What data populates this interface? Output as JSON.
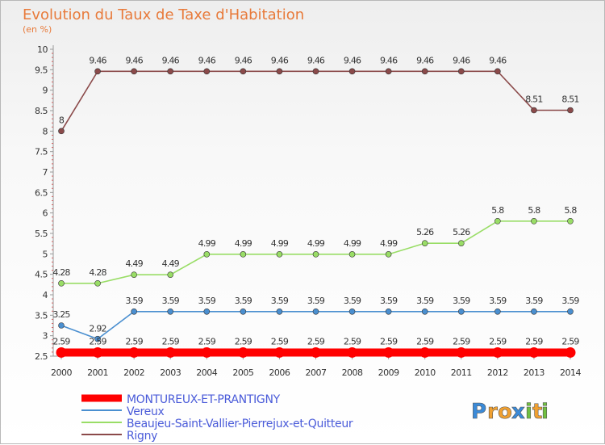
{
  "chart_data": {
    "type": "line",
    "title": "Evolution du Taux de Taxe d'Habitation",
    "subtitle": "(en %)",
    "x": [
      "2000",
      "2001",
      "2002",
      "2003",
      "2004",
      "2005",
      "2006",
      "2007",
      "2008",
      "2009",
      "2010",
      "2011",
      "2012",
      "2013",
      "2014"
    ],
    "ylim": [
      2.5,
      10
    ],
    "yticks": [
      "2.5",
      "3",
      "3.5",
      "4",
      "4.5",
      "5",
      "5.5",
      "6",
      "6.5",
      "7",
      "7.5",
      "8",
      "8.5",
      "9",
      "9.5",
      "10"
    ],
    "grid": false,
    "legend_position": "bottom-left",
    "series": [
      {
        "name": "MONTUREUX-ET-PRANTIGNY",
        "color": "#ff0000",
        "values": [
          2.59,
          2.59,
          2.59,
          2.59,
          2.59,
          2.59,
          2.59,
          2.59,
          2.59,
          2.59,
          2.59,
          2.59,
          2.59,
          2.59,
          2.59
        ],
        "labels": [
          "2.59",
          "2.59",
          "2.59",
          "2.59",
          "2.59",
          "2.59",
          "2.59",
          "2.59",
          "2.59",
          "2.59",
          "2.59",
          "2.59",
          "2.59",
          "2.59",
          "2.59"
        ]
      },
      {
        "name": "Vereux",
        "color": "#4a8fd0",
        "values": [
          3.25,
          2.92,
          3.59,
          3.59,
          3.59,
          3.59,
          3.59,
          3.59,
          3.59,
          3.59,
          3.59,
          3.59,
          3.59,
          3.59,
          3.59
        ],
        "labels": [
          "3.25",
          "2.92",
          "3.59",
          "3.59",
          "3.59",
          "3.59",
          "3.59",
          "3.59",
          "3.59",
          "3.59",
          "3.59",
          "3.59",
          "3.59",
          "3.59",
          "3.59"
        ]
      },
      {
        "name": "Beaujeu-Saint-Vallier-Pierrejux-et-Quitteur",
        "color": "#99dd66",
        "values": [
          4.28,
          4.28,
          4.49,
          4.49,
          4.99,
          4.99,
          4.99,
          4.99,
          4.99,
          4.99,
          5.26,
          5.26,
          5.8,
          5.8,
          5.8
        ],
        "labels": [
          "4.28",
          "4.28",
          "4.49",
          "4.49",
          "4.99",
          "4.99",
          "4.99",
          "4.99",
          "4.99",
          "4.99",
          "5.26",
          "5.26",
          "5.8",
          "5.8",
          "5.8"
        ]
      },
      {
        "name": "Rigny",
        "color": "#8b4a4a",
        "values": [
          8,
          9.46,
          9.46,
          9.46,
          9.46,
          9.46,
          9.46,
          9.46,
          9.46,
          9.46,
          9.46,
          9.46,
          9.46,
          8.51,
          8.51
        ],
        "labels": [
          "8",
          "9.46",
          "9.46",
          "9.46",
          "9.46",
          "9.46",
          "9.46",
          "9.46",
          "9.46",
          "9.46",
          "9.46",
          "9.46",
          "9.46",
          "8.51",
          "8.51"
        ]
      }
    ]
  },
  "branding": {
    "logo_letters": [
      "P",
      "r",
      "o",
      "x",
      "i",
      "t",
      "i"
    ],
    "logo_colors": [
      "#3a8ad8",
      "#f0a030",
      "#f0a030",
      "#3a8ad8",
      "#70c040",
      "#f0a030",
      "#70c040"
    ]
  }
}
